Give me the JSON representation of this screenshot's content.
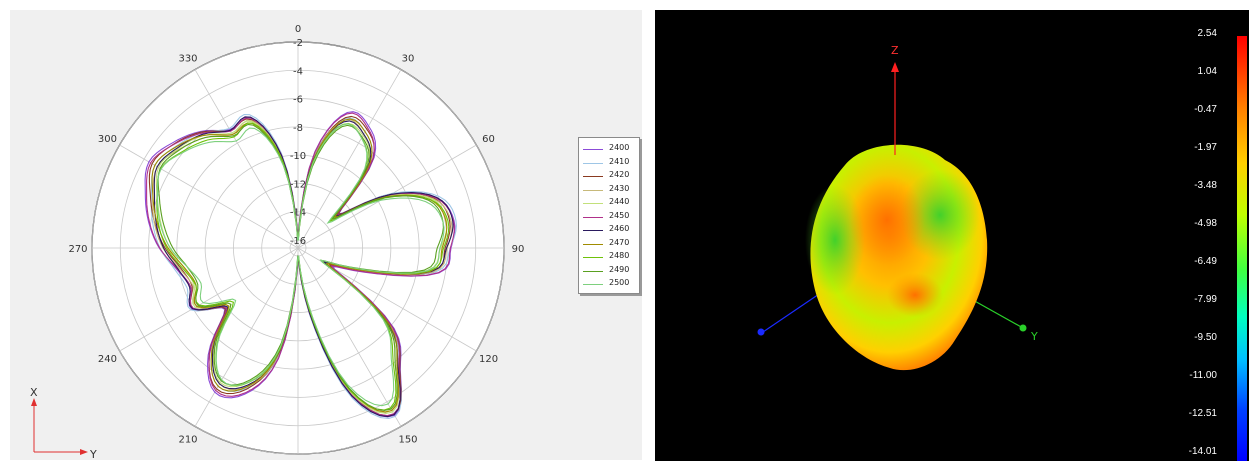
{
  "chart_data": [
    {
      "type": "polar-line",
      "angle_labels": [
        "0",
        "30",
        "60",
        "90",
        "120",
        "150",
        "180",
        "210",
        "240",
        "270",
        "300",
        "330"
      ],
      "radial_labels": [
        "-2",
        "-4",
        "-6",
        "-8",
        "-10",
        "-12",
        "-14",
        "-16"
      ],
      "rlim": [
        -16,
        -2
      ],
      "grid": true,
      "legend_position": "right",
      "series": [
        {
          "name": "2400",
          "color": "#8b4bd8",
          "offset": 0.25
        },
        {
          "name": "2410",
          "color": "#9ec6e6",
          "offset": 0.1
        },
        {
          "name": "2420",
          "color": "#8a3a20",
          "offset": 0.0
        },
        {
          "name": "2430",
          "color": "#c7b97a",
          "offset": -0.2
        },
        {
          "name": "2440",
          "color": "#c2e07a",
          "offset": -0.35
        },
        {
          "name": "2450",
          "color": "#b0308a",
          "offset": 0.15
        },
        {
          "name": "2460",
          "color": "#2a1a5e",
          "offset": -0.1
        },
        {
          "name": "2470",
          "color": "#a08c00",
          "offset": -0.25
        },
        {
          "name": "2480",
          "color": "#6fc20a",
          "offset": -0.45
        },
        {
          "name": "2490",
          "color": "#5aa020",
          "offset": -0.55
        },
        {
          "name": "2500",
          "color": "#7ed07e",
          "offset": -0.65
        }
      ],
      "pattern_deg": [
        0,
        10,
        20,
        30,
        40,
        50,
        60,
        70,
        80,
        90,
        100,
        110,
        120,
        130,
        140,
        150,
        160,
        170,
        180,
        190,
        200,
        210,
        220,
        230,
        240,
        250,
        260,
        270,
        280,
        290,
        300,
        310,
        320,
        330,
        340,
        350
      ],
      "pattern_db": [
        -16,
        -10,
        -6.8,
        -7,
        -8.5,
        -13,
        -9,
        -6.2,
        -5.5,
        -6,
        -6.8,
        -12,
        -14,
        -8,
        -5.5,
        -3,
        -5.5,
        -12,
        -16,
        -9,
        -6,
        -5.2,
        -7,
        -10,
        -8,
        -8.5,
        -8,
        -7,
        -6.2,
        -5.5,
        -4.8,
        -5.3,
        -6,
        -7,
        -6.8,
        -10
      ]
    },
    {
      "type": "3d-pattern",
      "axes": {
        "z": "Z",
        "y": "Y"
      },
      "colorbar_labels": [
        "2.54",
        "1.04",
        "-0.47",
        "-1.97",
        "-3.48",
        "-4.98",
        "-6.49",
        "-7.99",
        "-9.50",
        "-11.00",
        "-12.51",
        "-14.01"
      ],
      "range": [
        -14.01,
        2.54
      ]
    }
  ],
  "axis_indicator": {
    "x": "X",
    "y": "Y"
  },
  "colors": {
    "grid": "#c8c8c8",
    "panel_bg": "#f0f0f0",
    "axis_x": "#ff4040",
    "axis_y": "#2ad02a",
    "axis_z": "#1a2aff"
  }
}
